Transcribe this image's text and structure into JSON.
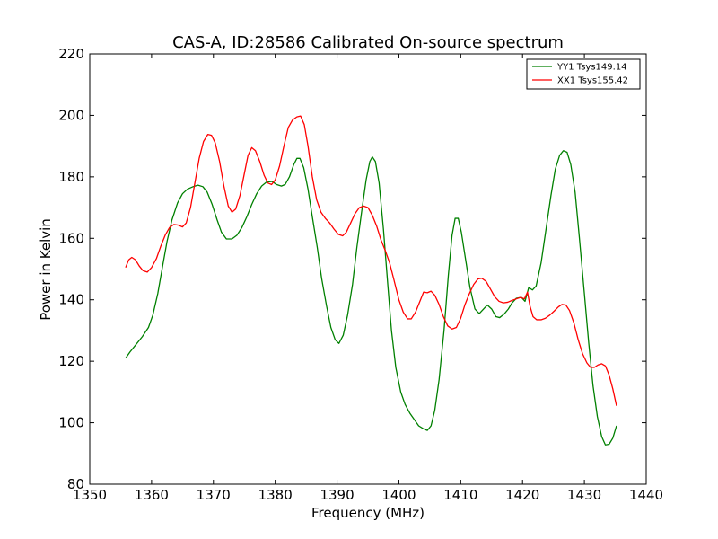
{
  "chart_data": {
    "type": "line",
    "title": "CAS-A, ID:28586 Calibrated On-source spectrum",
    "xlabel": "Frequency (MHz)",
    "ylabel": "Power in Kelvin",
    "xlim": [
      1350,
      1440
    ],
    "ylim": [
      80,
      220
    ],
    "xticks": [
      1350,
      1360,
      1370,
      1380,
      1390,
      1400,
      1410,
      1420,
      1430,
      1440
    ],
    "yticks": [
      80,
      100,
      120,
      140,
      160,
      180,
      200,
      220
    ],
    "grid": false,
    "legend_position": "top-right",
    "series": [
      {
        "name": "YY1 Tsys149.14",
        "color": "#008000",
        "points": [
          [
            1355.8,
            121
          ],
          [
            1356.5,
            123
          ],
          [
            1357.5,
            125.5
          ],
          [
            1358.5,
            128
          ],
          [
            1359.5,
            131
          ],
          [
            1360.2,
            135
          ],
          [
            1361,
            142
          ],
          [
            1361.7,
            150
          ],
          [
            1362.5,
            159
          ],
          [
            1363.3,
            166
          ],
          [
            1364.2,
            171.5
          ],
          [
            1365,
            174.5
          ],
          [
            1365.8,
            176
          ],
          [
            1366.7,
            176.8
          ],
          [
            1367.5,
            177.3
          ],
          [
            1368.3,
            176.8
          ],
          [
            1369,
            175
          ],
          [
            1369.8,
            171
          ],
          [
            1370.6,
            166
          ],
          [
            1371.3,
            162
          ],
          [
            1372.1,
            159.8
          ],
          [
            1373,
            159.8
          ],
          [
            1373.8,
            161
          ],
          [
            1374.6,
            163.5
          ],
          [
            1375.4,
            167
          ],
          [
            1376.2,
            171
          ],
          [
            1377,
            174.5
          ],
          [
            1377.8,
            177
          ],
          [
            1378.6,
            178.3
          ],
          [
            1379.5,
            178.5
          ],
          [
            1380.2,
            177.5
          ],
          [
            1381,
            177
          ],
          [
            1381.6,
            177.5
          ],
          [
            1382.3,
            180
          ],
          [
            1383,
            184
          ],
          [
            1383.5,
            186
          ],
          [
            1384,
            186
          ],
          [
            1384.6,
            183
          ],
          [
            1385.3,
            176
          ],
          [
            1386,
            167
          ],
          [
            1386.8,
            157
          ],
          [
            1387.5,
            147
          ],
          [
            1388.3,
            138
          ],
          [
            1389,
            131
          ],
          [
            1389.7,
            127
          ],
          [
            1390.3,
            125.8
          ],
          [
            1391,
            128.5
          ],
          [
            1391.7,
            135
          ],
          [
            1392.5,
            145
          ],
          [
            1393.2,
            157
          ],
          [
            1394,
            169
          ],
          [
            1394.7,
            179
          ],
          [
            1395.3,
            185
          ],
          [
            1395.7,
            186.5
          ],
          [
            1396.2,
            185
          ],
          [
            1396.8,
            178
          ],
          [
            1397.5,
            163
          ],
          [
            1398.2,
            145
          ],
          [
            1398.8,
            130
          ],
          [
            1399.5,
            118
          ],
          [
            1400.3,
            110
          ],
          [
            1401,
            106
          ],
          [
            1401.8,
            103
          ],
          [
            1402.5,
            101
          ],
          [
            1403.2,
            99
          ],
          [
            1404,
            98
          ],
          [
            1404.6,
            97.5
          ],
          [
            1405.2,
            99
          ],
          [
            1405.8,
            104
          ],
          [
            1406.5,
            114
          ],
          [
            1407.3,
            130
          ],
          [
            1408,
            148
          ],
          [
            1408.6,
            161
          ],
          [
            1409.1,
            166.5
          ],
          [
            1409.6,
            166.5
          ],
          [
            1410.1,
            162
          ],
          [
            1410.8,
            153
          ],
          [
            1411.5,
            144
          ],
          [
            1412.3,
            137
          ],
          [
            1413,
            135.5
          ],
          [
            1413.7,
            137
          ],
          [
            1414.3,
            138.3
          ],
          [
            1415,
            137
          ],
          [
            1415.7,
            134.5
          ],
          [
            1416.3,
            134.2
          ],
          [
            1417,
            135.3
          ],
          [
            1417.7,
            137
          ],
          [
            1418.3,
            139
          ],
          [
            1419,
            140.5
          ],
          [
            1419.8,
            140.8
          ],
          [
            1420.4,
            139.5
          ],
          [
            1421,
            144
          ],
          [
            1421.6,
            143.2
          ],
          [
            1422.2,
            144.5
          ],
          [
            1423,
            152
          ],
          [
            1423.8,
            163
          ],
          [
            1424.6,
            174
          ],
          [
            1425.3,
            182.5
          ],
          [
            1426,
            187
          ],
          [
            1426.6,
            188.5
          ],
          [
            1427.2,
            188
          ],
          [
            1427.8,
            184
          ],
          [
            1428.5,
            175
          ],
          [
            1429.2,
            160
          ],
          [
            1430,
            142
          ],
          [
            1430.7,
            126
          ],
          [
            1431.4,
            112
          ],
          [
            1432.1,
            102
          ],
          [
            1432.8,
            95.5
          ],
          [
            1433.4,
            92.8
          ],
          [
            1434,
            93
          ],
          [
            1434.6,
            95
          ],
          [
            1435.2,
            99
          ]
        ]
      },
      {
        "name": "XX1 Tsys155.42",
        "color": "#ff0000",
        "points": [
          [
            1355.8,
            150.5
          ],
          [
            1356.3,
            153
          ],
          [
            1356.8,
            153.8
          ],
          [
            1357.4,
            153
          ],
          [
            1358,
            151
          ],
          [
            1358.6,
            149.5
          ],
          [
            1359.3,
            149
          ],
          [
            1360,
            150.5
          ],
          [
            1360.8,
            153.5
          ],
          [
            1361.5,
            157.5
          ],
          [
            1362.2,
            161
          ],
          [
            1362.9,
            163.5
          ],
          [
            1363.6,
            164.5
          ],
          [
            1364.3,
            164.3
          ],
          [
            1365,
            163.7
          ],
          [
            1365.6,
            165
          ],
          [
            1366.3,
            170
          ],
          [
            1367,
            178
          ],
          [
            1367.7,
            186
          ],
          [
            1368.4,
            191.5
          ],
          [
            1369.1,
            193.8
          ],
          [
            1369.7,
            193.5
          ],
          [
            1370.3,
            191
          ],
          [
            1371,
            185
          ],
          [
            1371.7,
            177
          ],
          [
            1372.4,
            170.5
          ],
          [
            1373,
            168.5
          ],
          [
            1373.6,
            169.5
          ],
          [
            1374.3,
            174
          ],
          [
            1375,
            181
          ],
          [
            1375.6,
            187
          ],
          [
            1376.2,
            189.5
          ],
          [
            1376.8,
            188.5
          ],
          [
            1377.5,
            185
          ],
          [
            1378.2,
            180.5
          ],
          [
            1378.8,
            178
          ],
          [
            1379.4,
            177.5
          ],
          [
            1380,
            179
          ],
          [
            1380.7,
            183.5
          ],
          [
            1381.4,
            190
          ],
          [
            1382.1,
            196
          ],
          [
            1382.8,
            198.5
          ],
          [
            1383.5,
            199.5
          ],
          [
            1384.1,
            199.8
          ],
          [
            1384.7,
            197
          ],
          [
            1385.3,
            190
          ],
          [
            1386,
            180
          ],
          [
            1386.7,
            172.5
          ],
          [
            1387.4,
            168.5
          ],
          [
            1388.1,
            166.5
          ],
          [
            1388.8,
            165
          ],
          [
            1389.5,
            163
          ],
          [
            1390.2,
            161.3
          ],
          [
            1390.9,
            160.8
          ],
          [
            1391.5,
            162
          ],
          [
            1392.2,
            165
          ],
          [
            1392.9,
            168
          ],
          [
            1393.6,
            170
          ],
          [
            1394.3,
            170.5
          ],
          [
            1395,
            170
          ],
          [
            1395.7,
            167.5
          ],
          [
            1396.4,
            164
          ],
          [
            1397.1,
            159.5
          ],
          [
            1397.8,
            156
          ],
          [
            1398.5,
            152
          ],
          [
            1399.2,
            146.5
          ],
          [
            1400,
            140
          ],
          [
            1400.7,
            136
          ],
          [
            1401.4,
            133.8
          ],
          [
            1402,
            133.8
          ],
          [
            1402.7,
            136
          ],
          [
            1403.4,
            139.5
          ],
          [
            1404,
            142.5
          ],
          [
            1404.6,
            142.3
          ],
          [
            1405.2,
            142.8
          ],
          [
            1405.8,
            141.5
          ],
          [
            1406.5,
            138.5
          ],
          [
            1407.2,
            134.5
          ],
          [
            1407.9,
            131.5
          ],
          [
            1408.6,
            130.5
          ],
          [
            1409.3,
            131
          ],
          [
            1410,
            134
          ],
          [
            1410.7,
            138.5
          ],
          [
            1411.4,
            142
          ],
          [
            1412.1,
            145
          ],
          [
            1412.8,
            146.8
          ],
          [
            1413.4,
            147
          ],
          [
            1414.1,
            146
          ],
          [
            1414.8,
            143.5
          ],
          [
            1415.5,
            141
          ],
          [
            1416.2,
            139.5
          ],
          [
            1416.9,
            139
          ],
          [
            1417.6,
            139.2
          ],
          [
            1418.3,
            139.8
          ],
          [
            1419,
            140.3
          ],
          [
            1419.7,
            140.8
          ],
          [
            1420.3,
            140.3
          ],
          [
            1420.8,
            142.5
          ],
          [
            1421.2,
            138
          ],
          [
            1421.7,
            134.5
          ],
          [
            1422.3,
            133.5
          ],
          [
            1423,
            133.5
          ],
          [
            1423.7,
            134
          ],
          [
            1424.4,
            135
          ],
          [
            1425.1,
            136.3
          ],
          [
            1425.8,
            137.7
          ],
          [
            1426.4,
            138.5
          ],
          [
            1427,
            138.3
          ],
          [
            1427.6,
            136.5
          ],
          [
            1428.3,
            132.5
          ],
          [
            1429,
            127
          ],
          [
            1429.7,
            122.5
          ],
          [
            1430.4,
            119.5
          ],
          [
            1431,
            118
          ],
          [
            1431.6,
            118
          ],
          [
            1432.2,
            118.8
          ],
          [
            1432.8,
            119.2
          ],
          [
            1433.4,
            118.5
          ],
          [
            1434,
            115.5
          ],
          [
            1434.6,
            111
          ],
          [
            1435.2,
            105.5
          ]
        ]
      }
    ]
  }
}
